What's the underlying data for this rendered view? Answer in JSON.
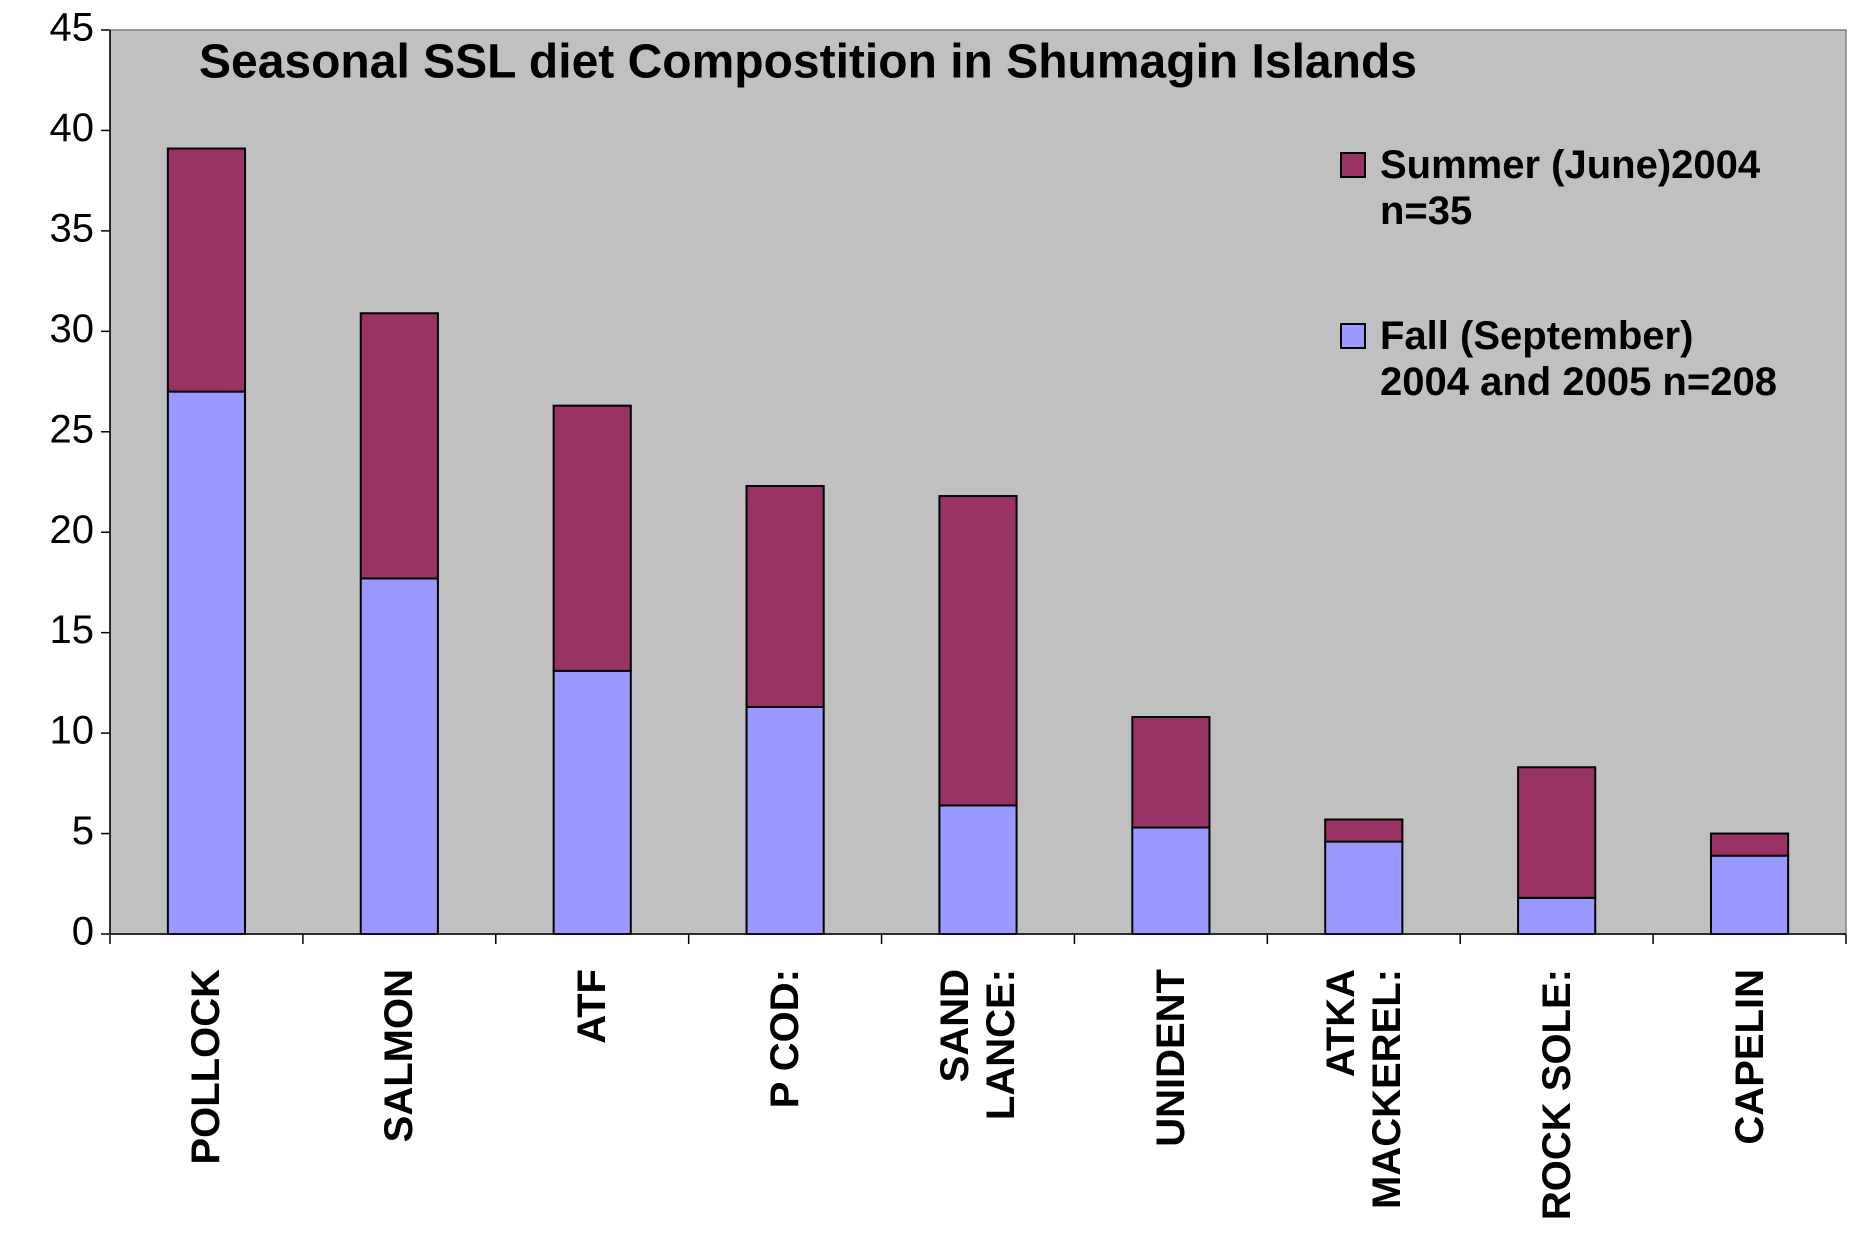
{
  "chart_data": {
    "type": "bar",
    "stacked": true,
    "title": "Seasonal SSL diet Compostition in Shumagin Islands",
    "categories": [
      "POLLOCK",
      "SALMON",
      "ATF",
      "P COD:",
      "SAND\nLANCE:",
      "UNIDENT",
      "ATKA\nMACKEREL:",
      "ROCK SOLE:",
      "CAPELIN"
    ],
    "series": [
      {
        "name": "Summer (June)2004\nn=35",
        "color": "#993366",
        "values": [
          12.1,
          13.2,
          13.2,
          11.0,
          15.4,
          5.5,
          1.1,
          6.5,
          1.1
        ]
      },
      {
        "name": "Fall (September)\n2004 and 2005 n=208",
        "color": "#9999ff",
        "values": [
          27,
          17.7,
          13.1,
          11.3,
          6.4,
          5.3,
          4.6,
          1.8,
          3.9
        ]
      }
    ],
    "ylim": [
      0,
      45
    ],
    "yticks": [
      0,
      5,
      10,
      15,
      20,
      25,
      30,
      35,
      40,
      45
    ],
    "plot_background": "#c0c0c0"
  }
}
